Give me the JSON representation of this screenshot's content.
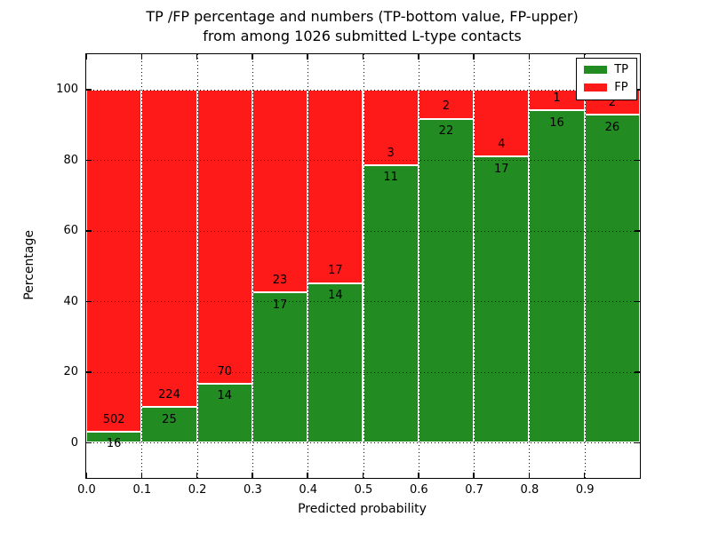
{
  "chart_data": {
    "type": "bar",
    "stacked": true,
    "title_line1": "TP /FP percentage and numbers (TP-bottom value, FP-upper)",
    "title_line2": "from among 1026 submitted L-type contacts",
    "xlabel": "Predicted probability",
    "ylabel": "Percentage",
    "total_contacts": 1026,
    "bin_width": 0.1,
    "bin_starts": [
      0.0,
      0.1,
      0.2,
      0.3,
      0.4,
      0.5,
      0.6,
      0.7,
      0.8,
      0.9
    ],
    "series": [
      {
        "name": "TP",
        "color": "#228b22",
        "counts": [
          16,
          25,
          14,
          17,
          14,
          11,
          22,
          17,
          16,
          26
        ]
      },
      {
        "name": "FP",
        "color": "#ff1a1a",
        "counts": [
          502,
          224,
          70,
          23,
          17,
          3,
          2,
          4,
          1,
          2
        ]
      }
    ],
    "tp_percent_of_bin": [
      3.09,
      10.04,
      16.67,
      42.5,
      45.16,
      78.57,
      91.67,
      80.95,
      94.12,
      92.86
    ],
    "xlim": [
      0.0,
      1.0
    ],
    "ylim": [
      -10,
      110
    ],
    "xticks": [
      "0.0",
      "0.1",
      "0.2",
      "0.3",
      "0.4",
      "0.5",
      "0.6",
      "0.7",
      "0.8",
      "0.9"
    ],
    "yticks": [
      "0",
      "20",
      "40",
      "60",
      "80",
      "100"
    ],
    "grid": "dotted",
    "legend": [
      "TP",
      "FP"
    ],
    "legend_position": "upper right",
    "label_note": "TP count below boundary, FP count above boundary"
  }
}
